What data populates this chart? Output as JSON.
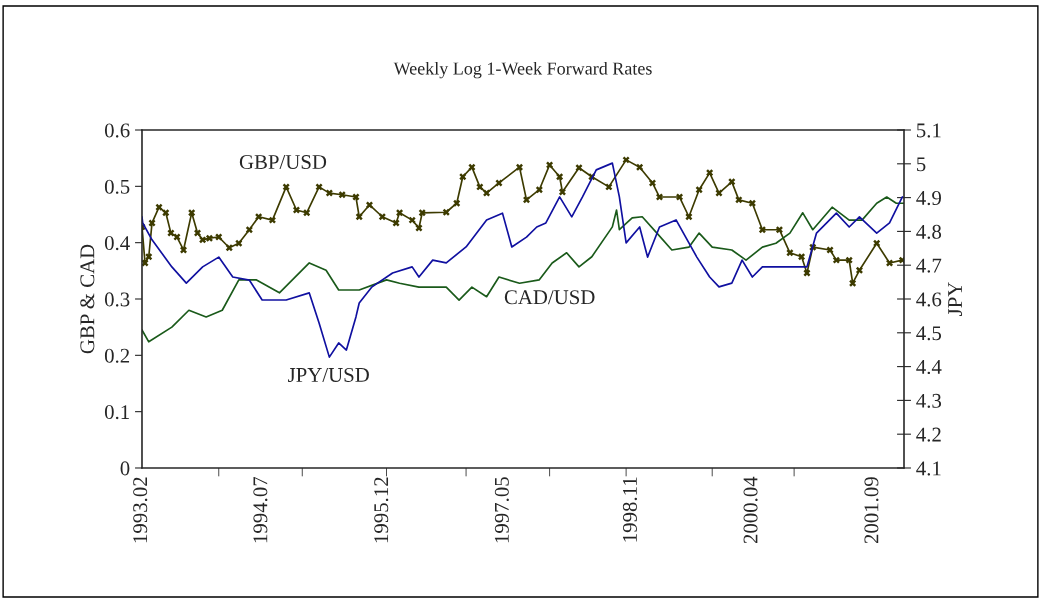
{
  "chart_data": {
    "type": "line",
    "title": "Weekly Log 1-Week Forward Rates",
    "ylabel": "GBP & CAD",
    "y2label": "JPY",
    "xlim": [
      "1993-02-01",
      "2002-01-11"
    ],
    "xticks": [
      {
        "value": "1993-02-01",
        "label": "1993.02"
      },
      {
        "value": "1994-07-01",
        "label": "1994.07"
      },
      {
        "value": "1995-12-01",
        "label": "1995.12"
      },
      {
        "value": "1997-05-01",
        "label": "1997.05"
      },
      {
        "value": "1998-11-01",
        "label": "1998.11"
      },
      {
        "value": "2000-04-01",
        "label": "2000.04"
      },
      {
        "value": "2001-09-01",
        "label": "2001.09"
      },
      {
        "value": "1993-12-27",
        "label": null
      },
      {
        "value": "1994-12-20",
        "label": null
      },
      {
        "value": "1995-12-16",
        "label": null
      },
      {
        "value": "1996-11-21",
        "label": null
      },
      {
        "value": "1997-11-14",
        "label": null
      },
      {
        "value": "1998-10-08",
        "label": null
      },
      {
        "value": "1999-10-12",
        "label": null
      },
      {
        "value": "2000-09-27",
        "label": null
      }
    ],
    "ylim": [
      0,
      0.6
    ],
    "yticks": [
      0,
      0.1,
      0.2,
      0.3,
      0.4,
      0.5,
      0.6
    ],
    "y2lim": [
      4.1,
      5.1
    ],
    "y2ticks": [
      4.1,
      4.2,
      4.3,
      4.4,
      4.5,
      4.6,
      4.7,
      4.8,
      4.9,
      5,
      5.1
    ],
    "grid": false,
    "series": [
      {
        "name": "GBP/USD",
        "color": "#3d3b00",
        "marker": "cross",
        "x": [
          "1993-02-01",
          "1993-02-14",
          "1993-03-02",
          "1993-03-16",
          "1993-04-15",
          "1993-05-14",
          "1993-06-05",
          "1993-07-01",
          "1993-07-29",
          "1993-09-02",
          "1993-09-27",
          "1993-10-19",
          "1993-11-17",
          "1993-12-27",
          "1994-02-10",
          "1994-03-23",
          "1994-05-07",
          "1994-06-16",
          "1994-08-14",
          "1994-10-12",
          "1994-11-25",
          "1995-01-08",
          "1995-03-02",
          "1995-04-15",
          "1995-06-09",
          "1995-08-07",
          "1995-08-21",
          "1995-10-04",
          "1995-11-28",
          "1996-01-26",
          "1996-02-10",
          "1996-04-04",
          "1996-05-03",
          "1996-05-17",
          "1996-08-28",
          "1996-10-12",
          "1996-11-07",
          "1996-12-16",
          "1997-01-19",
          "1997-02-17",
          "1997-04-11",
          "1997-07-08",
          "1997-08-07",
          "1997-10-01",
          "1997-11-14",
          "1997-12-27",
          "1998-01-08",
          "1998-03-20",
          "1998-05-14",
          "1998-07-26",
          "1998-10-08",
          "1998-12-05",
          "1999-01-29",
          "1999-02-28",
          "1999-05-25",
          "1999-07-04",
          "1999-08-17",
          "1999-10-01",
          "1999-11-10",
          "2000-01-04",
          "2000-02-03",
          "2000-04-01",
          "2000-05-14",
          "2000-07-26",
          "2000-09-09",
          "2000-10-29",
          "2000-11-21",
          "2000-12-16",
          "2001-02-28",
          "2001-03-27",
          "2001-05-21",
          "2001-06-05",
          "2001-07-04",
          "2001-09-16",
          "2001-11-10",
          "2002-01-04"
        ],
        "values": [
          0.428,
          0.364,
          0.375,
          0.435,
          0.463,
          0.453,
          0.417,
          0.41,
          0.387,
          0.453,
          0.417,
          0.405,
          0.408,
          0.41,
          0.391,
          0.399,
          0.423,
          0.446,
          0.44,
          0.499,
          0.458,
          0.453,
          0.499,
          0.488,
          0.485,
          0.481,
          0.446,
          0.467,
          0.446,
          0.435,
          0.453,
          0.44,
          0.426,
          0.453,
          0.454,
          0.47,
          0.517,
          0.534,
          0.499,
          0.488,
          0.506,
          0.534,
          0.476,
          0.494,
          0.538,
          0.517,
          0.49,
          0.533,
          0.517,
          0.499,
          0.547,
          0.534,
          0.506,
          0.481,
          0.481,
          0.446,
          0.494,
          0.524,
          0.488,
          0.508,
          0.476,
          0.47,
          0.423,
          0.423,
          0.382,
          0.375,
          0.346,
          0.392,
          0.387,
          0.369,
          0.369,
          0.328,
          0.351,
          0.399,
          0.364,
          0.369
        ]
      },
      {
        "name": "JPY/USD",
        "color": "#1010a0",
        "axis": "y2",
        "x": [
          "1993-02-01",
          "1993-02-04",
          "1993-03-16",
          "1993-06-09",
          "1993-08-10",
          "1993-10-19",
          "1993-12-27",
          "1994-02-25",
          "1994-05-07",
          "1994-07-01",
          "1994-10-12",
          "1995-01-19",
          "1995-03-02",
          "1995-04-15",
          "1995-05-25",
          "1995-06-27",
          "1995-08-07",
          "1995-08-21",
          "1995-10-15",
          "1996-01-11",
          "1996-04-04",
          "1996-05-03",
          "1996-07-01",
          "1996-08-28",
          "1996-11-21",
          "1997-02-17",
          "1997-04-26",
          "1997-06-05",
          "1997-08-07",
          "1997-09-20",
          "1997-10-29",
          "1997-12-27",
          "1998-02-17",
          "1998-04-04",
          "1998-06-02",
          "1998-08-10",
          "1998-09-09",
          "1998-10-08",
          "1998-12-05",
          "1999-01-08",
          "1999-02-28",
          "1999-05-10",
          "1999-08-07",
          "1999-10-01",
          "1999-11-10",
          "2000-01-04",
          "2000-02-17",
          "2000-04-01",
          "2000-05-14",
          "2000-08-25",
          "2000-11-21",
          "2001-01-01",
          "2001-03-27",
          "2001-05-21",
          "2001-07-04",
          "2001-09-16",
          "2001-11-10",
          "2002-01-04"
        ],
        "values": [
          4.843,
          4.825,
          4.775,
          4.695,
          4.647,
          4.695,
          4.724,
          4.665,
          4.656,
          4.597,
          4.597,
          4.618,
          4.529,
          4.428,
          4.47,
          4.449,
          4.547,
          4.588,
          4.636,
          4.677,
          4.695,
          4.665,
          4.715,
          4.707,
          4.754,
          4.834,
          4.854,
          4.754,
          4.783,
          4.813,
          4.825,
          4.902,
          4.843,
          4.902,
          4.982,
          5.002,
          4.902,
          4.766,
          4.813,
          4.724,
          4.813,
          4.834,
          4.724,
          4.665,
          4.636,
          4.647,
          4.715,
          4.665,
          4.695,
          4.695,
          4.695,
          4.795,
          4.854,
          4.813,
          4.843,
          4.795,
          4.825,
          4.902
        ]
      },
      {
        "name": "CAD/USD",
        "color": "#1a5a1a",
        "x": [
          "1993-02-01",
          "1993-03-02",
          "1993-06-09",
          "1993-08-21",
          "1993-11-03",
          "1994-01-11",
          "1994-03-23",
          "1994-06-05",
          "1994-09-13",
          "1995-01-19",
          "1995-04-01",
          "1995-05-25",
          "1995-08-21",
          "1995-12-16",
          "1996-02-10",
          "1996-05-03",
          "1996-08-28",
          "1996-10-22",
          "1996-12-16",
          "1997-02-17",
          "1997-04-11",
          "1997-07-08",
          "1997-10-01",
          "1997-11-25",
          "1998-01-26",
          "1998-03-20",
          "1998-05-14",
          "1998-08-10",
          "1998-08-28",
          "1998-09-09",
          "1998-11-03",
          "1998-12-16",
          "1999-02-17",
          "1999-04-22",
          "1999-07-04",
          "1999-08-17",
          "1999-10-12",
          "2000-01-04",
          "2000-03-05",
          "2000-05-14",
          "2000-07-11",
          "2000-09-09",
          "2000-11-03",
          "2000-12-16",
          "2001-03-09",
          "2001-05-21",
          "2001-07-15",
          "2001-09-16",
          "2001-10-29",
          "2001-12-09",
          "2002-01-11"
        ],
        "values": [
          0.245,
          0.224,
          0.25,
          0.28,
          0.268,
          0.28,
          0.334,
          0.334,
          0.311,
          0.364,
          0.351,
          0.316,
          0.316,
          0.334,
          0.328,
          0.321,
          0.321,
          0.298,
          0.321,
          0.304,
          0.339,
          0.328,
          0.334,
          0.364,
          0.382,
          0.357,
          0.375,
          0.428,
          0.458,
          0.423,
          0.444,
          0.446,
          0.417,
          0.387,
          0.392,
          0.417,
          0.392,
          0.387,
          0.369,
          0.392,
          0.399,
          0.417,
          0.453,
          0.423,
          0.463,
          0.44,
          0.44,
          0.47,
          0.481,
          0.47,
          0.47
        ]
      }
    ]
  }
}
